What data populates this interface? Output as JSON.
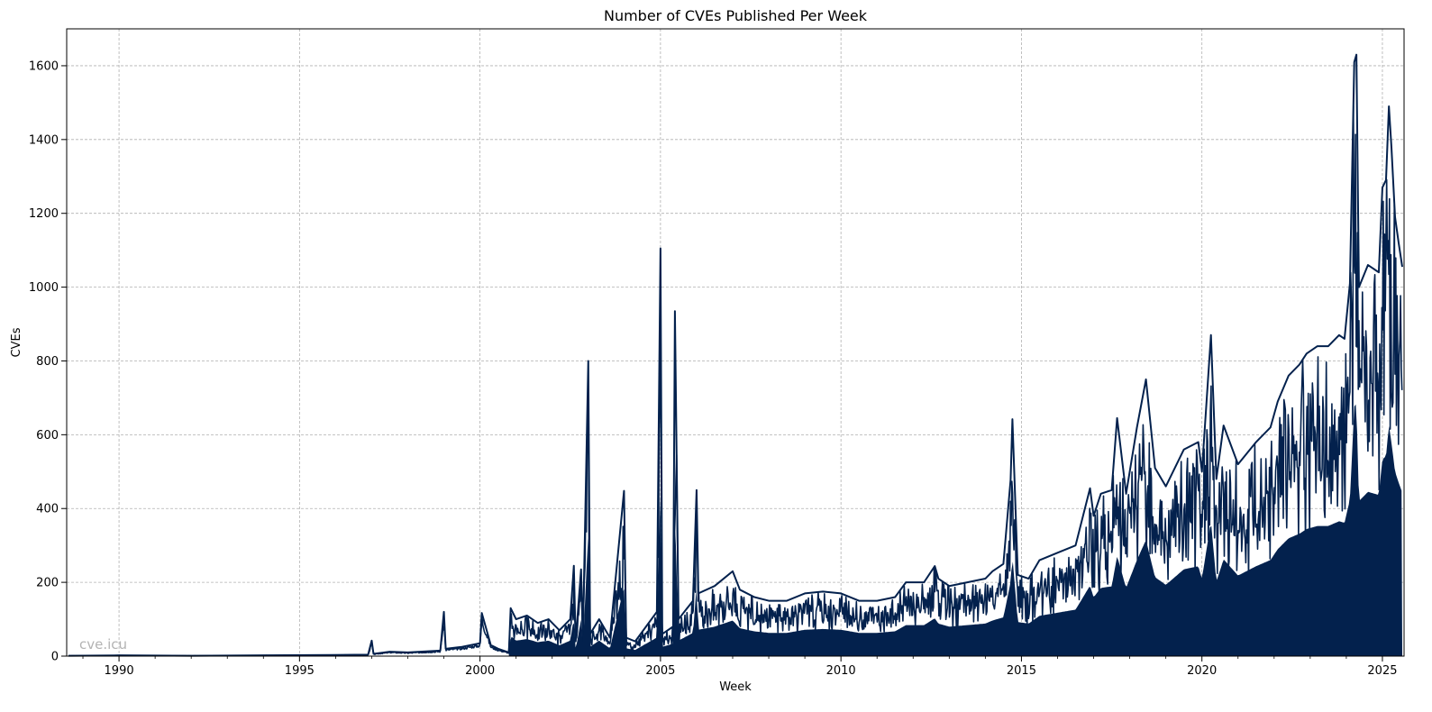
{
  "chart_data": {
    "type": "line",
    "title": "Number of CVEs Published Per Week",
    "xlabel": "Week",
    "ylabel": "CVEs",
    "watermark": "cve.icu",
    "xlim": [
      1988.55,
      2025.6
    ],
    "ylim": [
      0,
      1700
    ],
    "grid": true,
    "line_color": "#03214d",
    "x_ticks": [
      {
        "value": 1990,
        "label": "1990"
      },
      {
        "value": 1995,
        "label": "1995"
      },
      {
        "value": 2000,
        "label": "2000"
      },
      {
        "value": 2005,
        "label": "2005"
      },
      {
        "value": 2010,
        "label": "2010"
      },
      {
        "value": 2015,
        "label": "2015"
      },
      {
        "value": 2020,
        "label": "2020"
      },
      {
        "value": 2025,
        "label": "2025"
      }
    ],
    "y_ticks": [
      {
        "value": 0,
        "label": "0"
      },
      {
        "value": 200,
        "label": "200"
      },
      {
        "value": 400,
        "label": "400"
      },
      {
        "value": 600,
        "label": "600"
      },
      {
        "value": 800,
        "label": "800"
      },
      {
        "value": 1000,
        "label": "1000"
      },
      {
        "value": 1200,
        "label": "1200"
      },
      {
        "value": 1400,
        "label": "1400"
      },
      {
        "value": 1600,
        "label": "1600"
      }
    ],
    "series": [
      {
        "values_note_free": true,
        "x": [
          1988.6,
          1990.0,
          1992.0,
          1994.0,
          1995.9,
          1996.9,
          1997.0,
          1997.05,
          1997.5,
          1998.0,
          1998.9,
          1999.0,
          1999.05,
          1999.5,
          2000.0,
          2000.05,
          2000.3,
          2000.5,
          2000.8,
          2000.85,
          2001.0,
          2001.3,
          2001.6,
          2001.9,
          2002.2,
          2002.5,
          2002.6,
          2002.65,
          2002.8,
          2002.85,
          2003.0,
          2003.05,
          2003.3,
          2003.6,
          2003.99,
          2004.05,
          2004.3,
          2004.6,
          2004.9,
          2005.0,
          2005.05,
          2005.35,
          2005.4,
          2005.5,
          2005.9,
          2006.0,
          2006.05,
          2006.5,
          2007.0,
          2007.2,
          2007.6,
          2008.0,
          2008.5,
          2009.0,
          2009.5,
          2010.0,
          2010.5,
          2011.0,
          2011.5,
          2011.8,
          2012.3,
          2012.6,
          2012.7,
          2013.0,
          2013.5,
          2014.0,
          2014.2,
          2014.5,
          2014.7,
          2014.75,
          2014.9,
          2015.2,
          2015.5,
          2016.0,
          2016.5,
          2016.9,
          2017.0,
          2017.2,
          2017.5,
          2017.65,
          2017.9,
          2018.2,
          2018.45,
          2018.7,
          2019.0,
          2019.5,
          2019.9,
          2020.0,
          2020.25,
          2020.4,
          2020.6,
          2021.0,
          2021.5,
          2021.9,
          2022.1,
          2022.4,
          2022.7,
          2022.9,
          2023.2,
          2023.5,
          2023.8,
          2023.95,
          2024.1,
          2024.22,
          2024.28,
          2024.35,
          2024.6,
          2024.9,
          2025.0,
          2025.1,
          2025.18,
          2025.25,
          2025.35,
          2025.45,
          2025.55
        ],
        "values": [
          1,
          2,
          1,
          2,
          3,
          4,
          42,
          6,
          12,
          10,
          15,
          120,
          20,
          25,
          35,
          117,
          30,
          20,
          10,
          130,
          100,
          110,
          90,
          100,
          70,
          100,
          245,
          40,
          235,
          50,
          800,
          60,
          100,
          50,
          448,
          50,
          40,
          80,
          120,
          1105,
          60,
          80,
          935,
          100,
          150,
          450,
          170,
          190,
          230,
          180,
          160,
          150,
          150,
          170,
          175,
          170,
          150,
          150,
          160,
          200,
          200,
          244,
          210,
          190,
          200,
          210,
          230,
          250,
          478,
          642,
          220,
          210,
          260,
          280,
          300,
          455,
          380,
          440,
          450,
          645,
          440,
          620,
          750,
          510,
          460,
          560,
          580,
          500,
          870,
          480,
          625,
          520,
          580,
          620,
          690,
          760,
          790,
          820,
          840,
          840,
          870,
          860,
          1010,
          1610,
          1630,
          1000,
          1060,
          1040,
          1270,
          1290,
          1490,
          1380,
          1190,
          1120,
          1055
        ]
      }
    ]
  }
}
